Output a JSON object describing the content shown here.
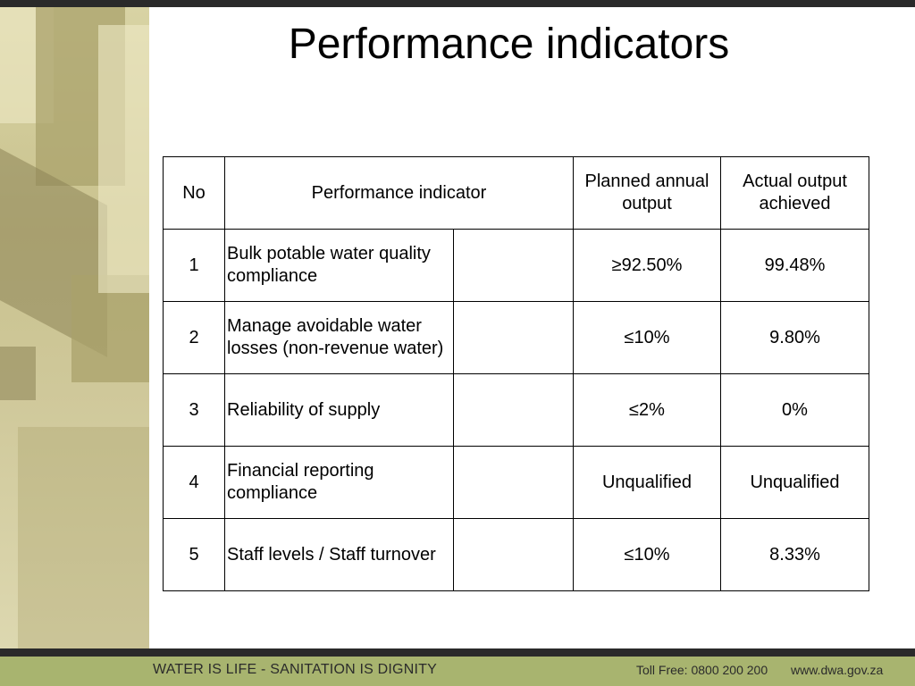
{
  "slide": {
    "title": "Performance indicators"
  },
  "table": {
    "headers": {
      "no": "No",
      "indicator": "Performance indicator",
      "planned": "Planned annual output",
      "actual": "Actual output achieved"
    },
    "rows": [
      {
        "no": "1",
        "indicator": "Bulk potable water quality compliance",
        "planned": "≥92.50%",
        "actual": "99.48%"
      },
      {
        "no": "2",
        "indicator": "Manage avoidable water losses (non-revenue water)",
        "planned": "≤10%",
        "actual": "9.80%"
      },
      {
        "no": "3",
        "indicator": "Reliability of supply",
        "planned": "≤2%",
        "actual": "0%"
      },
      {
        "no": "4",
        "indicator": "Financial reporting compliance",
        "planned": "Unqualified",
        "actual": "Unqualified"
      },
      {
        "no": "5",
        "indicator": "Staff levels / Staff turnover",
        "planned": "≤10%",
        "actual": "8.33%"
      }
    ]
  },
  "footer": {
    "slogan": "WATER IS LIFE - SANITATION IS DIGNITY",
    "toll_free": "Toll Free: 0800 200 200",
    "website": "www.dwa.gov.za"
  },
  "colors": {
    "footer_band": "#a8b46f",
    "dark_bar": "#2a2a2a"
  }
}
